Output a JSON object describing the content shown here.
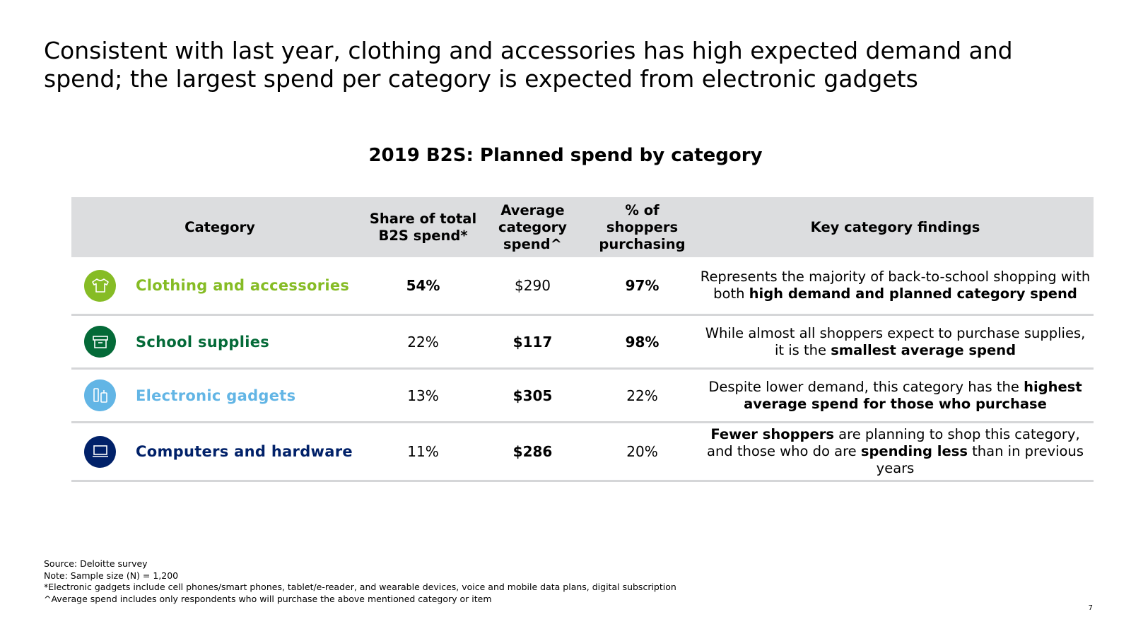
{
  "headline": "Consistent with last year, clothing and accessories has high expected demand and spend; the largest spend per category is expected from electronic gadgets",
  "table_title": "2019 B2S: Planned spend by category",
  "columns": {
    "category": "Category",
    "share": "Share of total B2S spend*",
    "average": "Average category spend^",
    "percent": "% of shoppers purchasing",
    "findings": "Key category findings"
  },
  "rows": [
    {
      "icon": "t-shirt-icon",
      "color": "#86bc25",
      "category": "Clothing and accessories",
      "share": "54%",
      "average": "$290",
      "percent": "97%",
      "finding_pre": "Represents the majority of back-to-school shopping with both ",
      "finding_bold": "high demand and planned category spend",
      "finding_mid": "",
      "finding_bold2": "",
      "finding_post": ""
    },
    {
      "icon": "box-icon",
      "color": "#046a38",
      "category": "School supplies",
      "share": "22%",
      "average": "$117",
      "percent": "98%",
      "finding_pre": "While almost all shoppers expect to purchase supplies, it is the ",
      "finding_bold": "smallest average spend",
      "finding_mid": "",
      "finding_bold2": "",
      "finding_post": ""
    },
    {
      "icon": "phone-icon",
      "color": "#62b5e5",
      "category": "Electronic gadgets",
      "share": "13%",
      "average": "$305",
      "percent": "22%",
      "finding_pre": "Despite lower demand, this category has the ",
      "finding_bold": "highest average spend for those who purchase",
      "finding_mid": "",
      "finding_bold2": "",
      "finding_post": ""
    },
    {
      "icon": "laptop-icon",
      "color": "#012169",
      "category": "Computers and hardware",
      "share": "11%",
      "average": "$286",
      "percent": "20%",
      "finding_pre": "",
      "finding_bold": "Fewer shoppers",
      "finding_mid": " are planning to shop this category, and those who do are ",
      "finding_bold2": "spending less",
      "finding_post": " than in previous years"
    }
  ],
  "notes": [
    "Source: Deloitte survey",
    "Note: Sample size (N) = 1,200",
    "*Electronic gadgets include cell phones/smart phones, tablet/e-reader, and wearable devices, voice and mobile data plans, digital subscription",
    "^Average spend includes only respondents who will purchase the above mentioned category or item"
  ],
  "page_number": "7"
}
